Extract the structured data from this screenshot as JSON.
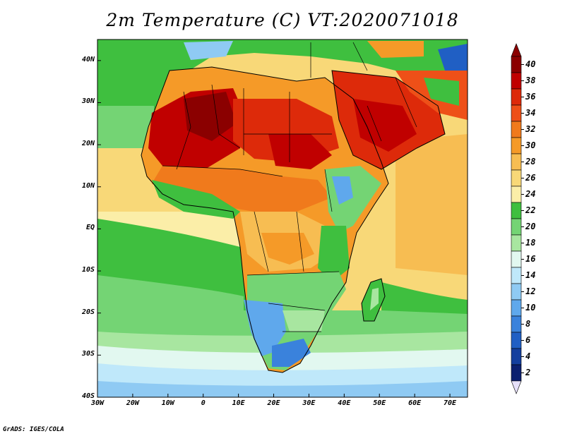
{
  "header": {
    "title": "2m Temperature (C) VT:2020071018"
  },
  "footer": {
    "credit": "GrADS: IGES/COLA"
  },
  "chart_data": {
    "type": "heatmap",
    "title": "2m Temperature (C) VT:2020071018",
    "x_ticks": [
      "30W",
      "20W",
      "10W",
      "0",
      "10E",
      "20E",
      "30E",
      "40E",
      "50E",
      "60E",
      "70E"
    ],
    "y_ticks": [
      "40N",
      "30N",
      "20N",
      "10N",
      "EQ",
      "10S",
      "20S",
      "30S",
      "40S"
    ],
    "xlim": [
      -30,
      75
    ],
    "ylim": [
      -40,
      45
    ],
    "colorbar": {
      "labels": [
        "40",
        "38",
        "36",
        "34",
        "32",
        "30",
        "28",
        "26",
        "24",
        "22",
        "20",
        "18",
        "16",
        "14",
        "12",
        "10",
        "8",
        "6",
        "4",
        "2"
      ],
      "colors": [
        "#8b0000",
        "#c00000",
        "#dd2a0a",
        "#ee5018",
        "#f07a1c",
        "#f59a28",
        "#f7bd52",
        "#f8d878",
        "#fbeea8",
        "#3fbf3f",
        "#74d474",
        "#a8e6a0",
        "#e2f8f0",
        "#bfe8fa",
        "#8fcaf3",
        "#5fa8ec",
        "#3a82dc",
        "#205fc4",
        "#143f9e",
        "#0c2070"
      ],
      "end_color": "#e6e0fa"
    }
  }
}
